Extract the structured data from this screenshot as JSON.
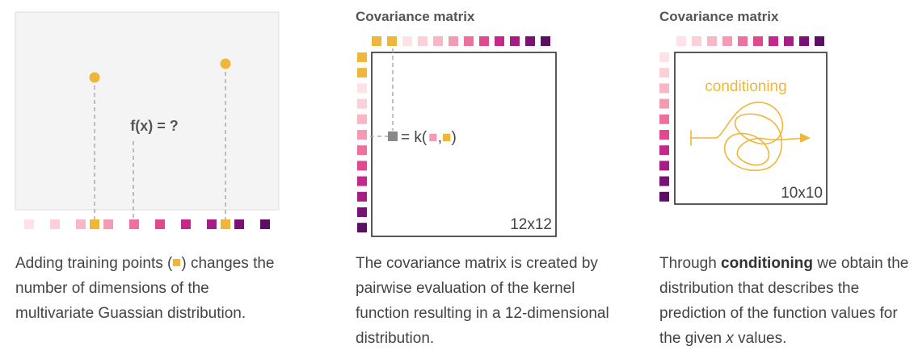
{
  "panels": [
    {
      "label": "f(x) = ?",
      "caption": {
        "part1": "Adding training points (",
        "part2": ") changes the number of dimensions of the multivariate Guassian distribution."
      }
    },
    {
      "title": "Covariance matrix",
      "size_label": "12x12",
      "kernel_label_prefix": "= k(",
      "kernel_label_comma": ",",
      "kernel_label_suffix": ")",
      "caption": "The covariance matrix is created by pairwise evaluation of the kernel function resulting in a 12-dimensional distribution."
    },
    {
      "title": "Covariance matrix",
      "overlay_label": "conditioning",
      "size_label": "10x10",
      "caption": {
        "before": "Through ",
        "bold": "conditioning",
        "middle": " we obtain the distribution that describes the prediction of the function values for the given ",
        "italic": "x",
        "after": " values."
      }
    }
  ],
  "colors": {
    "training_point": "#f0b63a",
    "grey_point": "#888888",
    "gradient": [
      "#fde3e6",
      "#fbd0d7",
      "#f9b6c5",
      "#f49ab3",
      "#ef6fa0",
      "#e0488f",
      "#c4288a",
      "#a71d85",
      "#7a1177",
      "#5b0e63"
    ]
  }
}
